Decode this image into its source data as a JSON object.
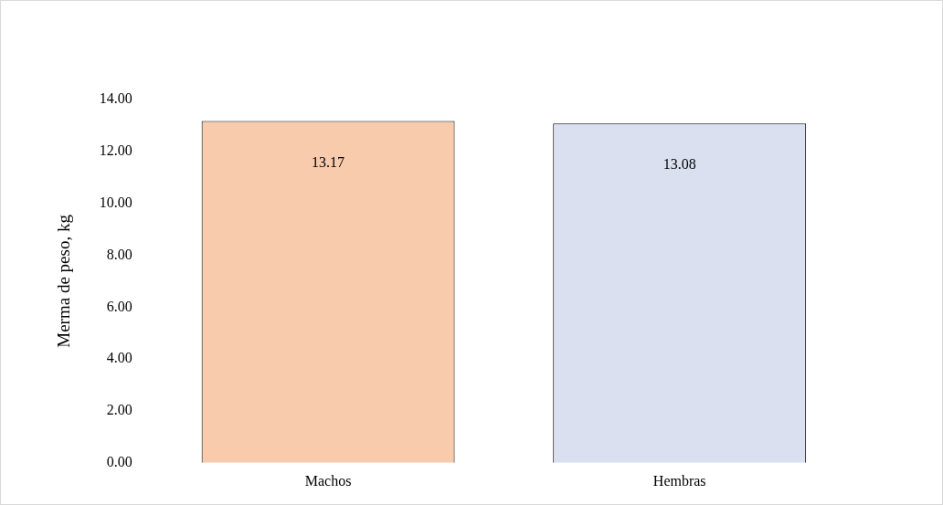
{
  "chart_data": {
    "type": "bar",
    "ylabel": "Merma de peso, kg",
    "categories": [
      "Machos",
      "Hembras"
    ],
    "values": [
      13.17,
      13.08
    ],
    "colors": [
      "#f8cbad",
      "#dae0f0"
    ],
    "ylim": [
      0,
      14
    ],
    "yticks": [
      {
        "value": 0,
        "label": "0.00"
      },
      {
        "value": 2,
        "label": "2.00"
      },
      {
        "value": 4,
        "label": "4.00"
      },
      {
        "value": 6,
        "label": "6.00"
      },
      {
        "value": 8,
        "label": "8.00"
      },
      {
        "value": 10,
        "label": "10.00"
      },
      {
        "value": 12,
        "label": "12.00"
      },
      {
        "value": 14,
        "label": "14.00"
      }
    ],
    "grid": false,
    "legend": false,
    "data_labels": true
  }
}
